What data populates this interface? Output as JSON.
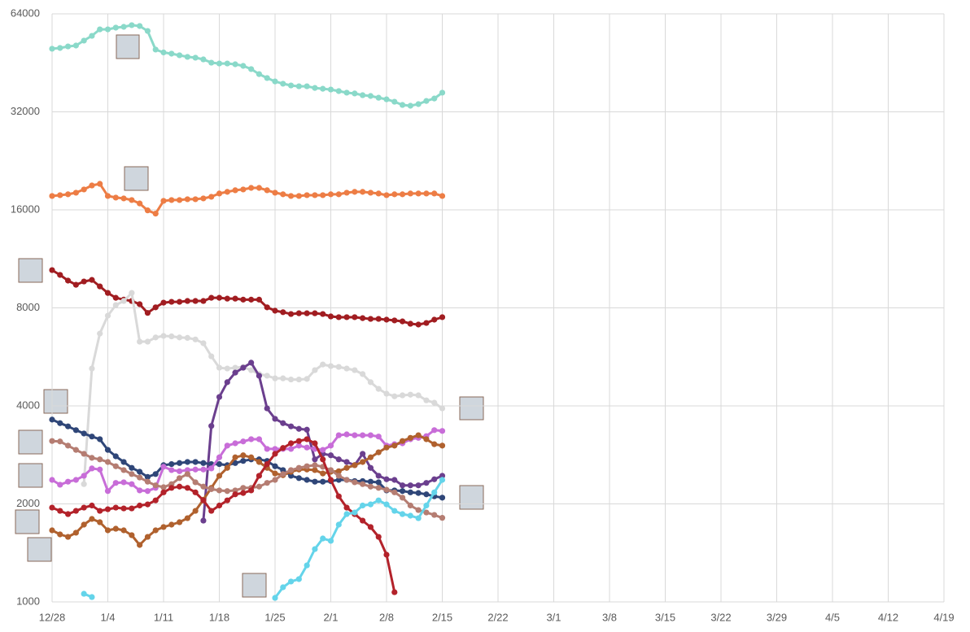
{
  "chart_data": {
    "type": "line",
    "yscale": "log",
    "ylim": [
      1000,
      64000
    ],
    "yticks": [
      1000,
      2000,
      4000,
      8000,
      16000,
      32000,
      64000
    ],
    "xlim": [
      0,
      112
    ],
    "xticks": [
      {
        "value": 0,
        "label": "12/28"
      },
      {
        "value": 7,
        "label": "1/4"
      },
      {
        "value": 14,
        "label": "1/11"
      },
      {
        "value": 21,
        "label": "1/18"
      },
      {
        "value": 28,
        "label": "1/25"
      },
      {
        "value": 35,
        "label": "2/1"
      },
      {
        "value": 42,
        "label": "2/8"
      },
      {
        "value": 49,
        "label": "2/15"
      },
      {
        "value": 56,
        "label": "2/22"
      },
      {
        "value": 63,
        "label": "3/1"
      },
      {
        "value": 70,
        "label": "3/8"
      },
      {
        "value": 77,
        "label": "3/15"
      },
      {
        "value": 84,
        "label": "3/22"
      },
      {
        "value": 91,
        "label": "3/29"
      },
      {
        "value": 98,
        "label": "4/5"
      },
      {
        "value": 105,
        "label": "4/12"
      },
      {
        "value": 112,
        "label": "4/19"
      }
    ],
    "grid": true,
    "x": [
      0,
      1,
      2,
      3,
      4,
      5,
      6,
      7,
      8,
      9,
      10,
      11,
      12,
      13,
      14,
      15,
      16,
      17,
      18,
      19,
      20,
      21,
      22,
      23,
      24,
      25,
      26,
      27,
      28,
      29,
      30,
      31,
      32,
      33,
      34,
      35,
      36,
      37,
      38,
      39,
      40,
      41,
      42,
      43,
      44,
      45,
      46,
      47,
      48,
      49
    ],
    "series": [
      {
        "color": "#8ad9c9",
        "values": [
          50000,
          50270,
          50820,
          51140,
          52960,
          54780,
          57340,
          57340,
          58050,
          58370,
          59070,
          58720,
          56700,
          49700,
          48700,
          48290,
          47740,
          47200,
          46930,
          46370,
          45310,
          45040,
          45040,
          44800,
          44290,
          43300,
          41790,
          40640,
          39680,
          39040,
          38560,
          38340,
          38340,
          37890,
          37670,
          37470,
          37060,
          36640,
          36440,
          36000,
          35800,
          35360,
          34960,
          34370,
          33600,
          33410,
          33800,
          34560,
          35160,
          36640
        ]
      },
      {
        "color": "#ed7d45",
        "values": [
          17650,
          17750,
          17860,
          18060,
          18480,
          19010,
          19230,
          17650,
          17450,
          17350,
          17150,
          16740,
          15940,
          15580,
          17050,
          17150,
          17150,
          17250,
          17250,
          17350,
          17550,
          17960,
          18170,
          18380,
          18480,
          18690,
          18690,
          18380,
          18060,
          17860,
          17650,
          17650,
          17750,
          17750,
          17750,
          17860,
          17860,
          18060,
          18170,
          18170,
          18060,
          17960,
          17750,
          17860,
          17860,
          17960,
          17960,
          17960,
          17960,
          17650
        ]
      },
      {
        "color": "#a11d21",
        "values": [
          10450,
          10100,
          9700,
          9420,
          9640,
          9750,
          9310,
          8890,
          8590,
          8480,
          8400,
          8210,
          7720,
          8030,
          8300,
          8350,
          8350,
          8400,
          8400,
          8400,
          8590,
          8590,
          8540,
          8540,
          8480,
          8480,
          8480,
          8030,
          7840,
          7760,
          7660,
          7700,
          7700,
          7700,
          7660,
          7530,
          7490,
          7490,
          7490,
          7440,
          7400,
          7400,
          7360,
          7320,
          7270,
          7150,
          7110,
          7190,
          7360,
          7490
        ]
      },
      {
        "color": "#d9d9d9",
        "values": [
          null,
          null,
          null,
          null,
          2300,
          5210,
          6670,
          7570,
          8160,
          8400,
          8890,
          6300,
          6300,
          6490,
          6560,
          6540,
          6490,
          6470,
          6400,
          6230,
          5680,
          5240,
          5210,
          5240,
          5270,
          5150,
          5010,
          4950,
          4860,
          4860,
          4820,
          4820,
          4840,
          5150,
          5360,
          5300,
          5270,
          5210,
          5150,
          5010,
          4730,
          4510,
          4360,
          4280,
          4310,
          4330,
          4310,
          4160,
          4090,
          3930
        ]
      },
      {
        "color": "#6b3f8e",
        "values": [
          null,
          null,
          null,
          null,
          null,
          null,
          null,
          null,
          null,
          null,
          null,
          null,
          null,
          null,
          null,
          null,
          null,
          null,
          null,
          1777,
          3470,
          4260,
          4730,
          5060,
          5240,
          5430,
          4950,
          3930,
          3650,
          3540,
          3460,
          3400,
          3380,
          2740,
          2850,
          2820,
          2740,
          2690,
          2630,
          2850,
          2580,
          2440,
          2380,
          2370,
          2280,
          2280,
          2280,
          2320,
          2380,
          2440
        ]
      },
      {
        "color": "#2f4678",
        "values": [
          3630,
          3540,
          3460,
          3370,
          3290,
          3220,
          3160,
          2930,
          2800,
          2690,
          2580,
          2510,
          2420,
          2470,
          2630,
          2650,
          2670,
          2690,
          2690,
          2670,
          2650,
          2650,
          2630,
          2670,
          2710,
          2740,
          2740,
          2710,
          2610,
          2540,
          2440,
          2400,
          2370,
          2340,
          2340,
          2350,
          2370,
          2370,
          2350,
          2350,
          2340,
          2330,
          2200,
          2200,
          2190,
          2170,
          2160,
          2140,
          2110,
          2090
        ]
      },
      {
        "color": "#c86dd8",
        "values": [
          2370,
          2290,
          2340,
          2370,
          2440,
          2570,
          2550,
          2190,
          2320,
          2330,
          2300,
          2200,
          2190,
          2240,
          2600,
          2540,
          2520,
          2540,
          2550,
          2550,
          2570,
          2780,
          3020,
          3070,
          3110,
          3160,
          3160,
          2950,
          2950,
          2950,
          2950,
          3020,
          2980,
          2950,
          2930,
          3020,
          3250,
          3270,
          3250,
          3250,
          3250,
          3220,
          3020,
          3050,
          3070,
          3160,
          3190,
          3230,
          3370,
          3350
        ]
      },
      {
        "color": "#b0612e",
        "values": [
          1659,
          1612,
          1584,
          1631,
          1727,
          1798,
          1757,
          1659,
          1678,
          1659,
          1603,
          1496,
          1584,
          1659,
          1698,
          1727,
          1757,
          1808,
          1904,
          2060,
          2240,
          2440,
          2580,
          2780,
          2820,
          2780,
          2690,
          2580,
          2480,
          2450,
          2510,
          2550,
          2550,
          2540,
          2480,
          2510,
          2520,
          2580,
          2630,
          2690,
          2780,
          2880,
          2980,
          3020,
          3120,
          3190,
          3250,
          3160,
          3050,
          3020
        ]
      },
      {
        "color": "#b57d72",
        "values": [
          3120,
          3110,
          3020,
          2930,
          2850,
          2770,
          2740,
          2690,
          2610,
          2540,
          2470,
          2410,
          2340,
          2280,
          2250,
          2300,
          2400,
          2470,
          2330,
          2260,
          2220,
          2200,
          2190,
          2200,
          2240,
          2240,
          2260,
          2320,
          2370,
          2470,
          2540,
          2580,
          2610,
          2630,
          2600,
          2540,
          2440,
          2370,
          2330,
          2300,
          2260,
          2240,
          2210,
          2170,
          2090,
          1977,
          1915,
          1882,
          1850,
          1812
        ]
      },
      {
        "color": "#b3222a",
        "values": [
          1948,
          1904,
          1861,
          1904,
          1948,
          1977,
          1904,
          1926,
          1948,
          1937,
          1937,
          1977,
          1993,
          2050,
          2170,
          2240,
          2260,
          2240,
          2170,
          2050,
          1904,
          1977,
          2050,
          2140,
          2160,
          2200,
          2440,
          2650,
          2850,
          2970,
          3070,
          3120,
          3160,
          3070,
          2740,
          2370,
          2110,
          1948,
          1861,
          1777,
          1698,
          1584,
          1396,
          1071,
          null,
          null,
          null,
          null,
          null,
          null
        ]
      },
      {
        "color": "#64d4ea",
        "values": [
          null,
          null,
          null,
          null,
          1059,
          1035,
          null,
          null,
          null,
          null,
          null,
          null,
          null,
          null,
          null,
          null,
          null,
          null,
          null,
          null,
          null,
          null,
          null,
          null,
          null,
          null,
          null,
          null,
          1029,
          1109,
          1155,
          1175,
          1295,
          1453,
          1566,
          1540,
          1727,
          1861,
          1882,
          1977,
          1993,
          2050,
          1993,
          1904,
          1861,
          1840,
          1808,
          1977,
          2170,
          2370
        ]
      }
    ]
  }
}
